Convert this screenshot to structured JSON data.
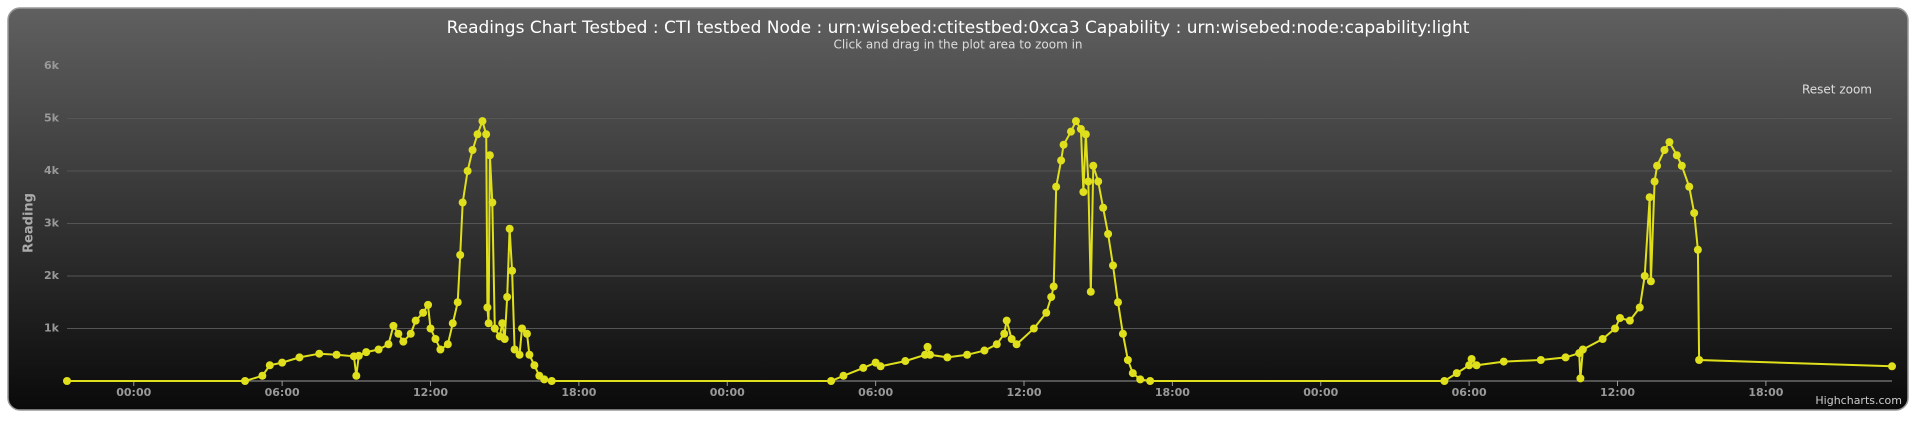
{
  "chart_data": {
    "type": "line",
    "title": "Readings Chart Testbed : CTI testbed Node : urn:wisebed:ctitestbed:0xca3 Capability : urn:wisebed:node:capability:light",
    "subtitle": "Click and drag in the plot area to zoom in",
    "y_label": "Reading",
    "reset_zoom_button": "Reset zoom",
    "credits": "Highcharts.com",
    "color": "#dfe01b",
    "grid": true,
    "xlim": [
      -2.7,
      71.1
    ],
    "xticks": [
      {
        "value": 0,
        "label": "00:00"
      },
      {
        "value": 6,
        "label": "06:00"
      },
      {
        "value": 12,
        "label": "12:00"
      },
      {
        "value": 18,
        "label": "18:00"
      },
      {
        "value": 24,
        "label": "00:00"
      },
      {
        "value": 30,
        "label": "06:00"
      },
      {
        "value": 36,
        "label": "12:00"
      },
      {
        "value": 42,
        "label": "18:00"
      },
      {
        "value": 48,
        "label": "00:00"
      },
      {
        "value": 54,
        "label": "06:00"
      },
      {
        "value": 60,
        "label": "12:00"
      },
      {
        "value": 66,
        "label": "18:00"
      }
    ],
    "ylim": [
      0,
      6000
    ],
    "yticks": [
      {
        "value": 1000,
        "label": "1k"
      },
      {
        "value": 2000,
        "label": "2k"
      },
      {
        "value": 3000,
        "label": "3k"
      },
      {
        "value": 4000,
        "label": "4k"
      },
      {
        "value": 5000,
        "label": "5k"
      },
      {
        "value": 6000,
        "label": "6k"
      }
    ],
    "x": [
      -2.7,
      4.5,
      5.2,
      5.5,
      6,
      6.7,
      7.5,
      8.2,
      8.9,
      9,
      9.1,
      9.4,
      9.9,
      10.3,
      10.5,
      10.7,
      10.9,
      11.2,
      11.4,
      11.7,
      11.9,
      12,
      12.2,
      12.4,
      12.7,
      12.9,
      13.1,
      13.2,
      13.3,
      13.5,
      13.7,
      13.9,
      14.1,
      14.25,
      14.3,
      14.35,
      14.4,
      14.5,
      14.6,
      14.8,
      14.9,
      15,
      15.1,
      15.2,
      15.3,
      15.4,
      15.6,
      15.7,
      15.9,
      16,
      16.2,
      16.4,
      16.6,
      16.9,
      28.2,
      28.7,
      29.5,
      30,
      30.2,
      31.2,
      32,
      32.1,
      32.2,
      32.9,
      33.7,
      34.4,
      34.9,
      35.2,
      35.3,
      35.5,
      35.7,
      36.4,
      36.9,
      37.1,
      37.2,
      37.3,
      37.5,
      37.6,
      37.9,
      38.1,
      38.3,
      38.4,
      38.5,
      38.6,
      38.7,
      38.8,
      39,
      39.2,
      39.4,
      39.6,
      39.8,
      40,
      40.2,
      40.4,
      40.7,
      41.1,
      53,
      53.5,
      54,
      54.1,
      54.3,
      55.4,
      56.9,
      57.9,
      58.45,
      58.5,
      58.6,
      59.4,
      59.9,
      60.1,
      60.5,
      60.9,
      61.1,
      61.3,
      61.35,
      61.5,
      61.6,
      61.9,
      62.1,
      62.4,
      62.6,
      62.9,
      63.1,
      63.25,
      63.3,
      71.1
    ],
    "values": [
      0,
      0,
      100,
      300,
      350,
      450,
      520,
      500,
      470,
      100,
      480,
      550,
      600,
      700,
      1050,
      900,
      750,
      900,
      1150,
      1300,
      1450,
      1000,
      800,
      600,
      700,
      1100,
      1500,
      2400,
      3400,
      4000,
      4400,
      4700,
      4950,
      4700,
      1400,
      1100,
      4300,
      3400,
      1000,
      850,
      1100,
      800,
      1600,
      2900,
      2100,
      600,
      500,
      1000,
      900,
      500,
      300,
      100,
      30,
      0,
      0,
      100,
      250,
      350,
      280,
      380,
      500,
      650,
      500,
      450,
      500,
      580,
      700,
      900,
      1150,
      800,
      700,
      1000,
      1300,
      1600,
      1800,
      3700,
      4200,
      4500,
      4750,
      4950,
      4800,
      3600,
      4700,
      3800,
      1700,
      4100,
      3800,
      3300,
      2800,
      2200,
      1500,
      900,
      400,
      150,
      30,
      0,
      0,
      150,
      300,
      420,
      300,
      370,
      400,
      450,
      530,
      50,
      600,
      800,
      1000,
      1200,
      1150,
      1400,
      2000,
      3500,
      1900,
      3800,
      4100,
      4400,
      4550,
      4300,
      4100,
      3700,
      3200,
      2500,
      400,
      280
    ]
  }
}
